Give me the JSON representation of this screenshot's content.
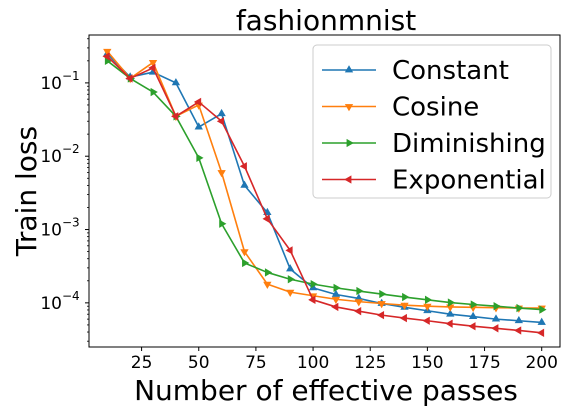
{
  "chart_data": {
    "type": "line",
    "title": "fashionmnist",
    "xlabel": "Number of effective passes",
    "ylabel": "Train loss",
    "yscale": "log",
    "xlim": [
      2,
      208
    ],
    "ylim": [
      2.5e-05,
      0.45
    ],
    "xticks": [
      25,
      50,
      75,
      100,
      125,
      150,
      175,
      200
    ],
    "yticks": [
      {
        "value": 0.1,
        "base": "10",
        "exp": "−1"
      },
      {
        "value": 0.01,
        "base": "10",
        "exp": "−2"
      },
      {
        "value": 0.001,
        "base": "10",
        "exp": "−3"
      },
      {
        "value": 0.0001,
        "base": "10",
        "exp": "−4"
      }
    ],
    "legend_position": "top-right",
    "grid": false,
    "series": [
      {
        "name": "Constant",
        "color": "#1f77b4",
        "marker": "triangle-up",
        "x": [
          10,
          20,
          30,
          40,
          50,
          60,
          70,
          80,
          90,
          100,
          110,
          120,
          130,
          140,
          150,
          160,
          170,
          180,
          190,
          200
        ],
        "y": [
          0.25,
          0.12,
          0.14,
          0.1,
          0.025,
          0.038,
          0.004,
          0.0017,
          0.00029,
          0.00016,
          0.00013,
          0.000115,
          9.8e-05,
          8.7e-05,
          7.8e-05,
          7e-05,
          6.5e-05,
          6e-05,
          5.7e-05,
          5.4e-05
        ]
      },
      {
        "name": "Cosine",
        "color": "#ff7f0e",
        "marker": "triangle-down",
        "x": [
          10,
          20,
          30,
          40,
          50,
          60,
          70,
          80,
          90,
          100,
          110,
          120,
          130,
          140,
          150,
          160,
          170,
          180,
          190,
          200
        ],
        "y": [
          0.27,
          0.115,
          0.19,
          0.035,
          0.05,
          0.006,
          0.0005,
          0.00018,
          0.00014,
          0.000125,
          0.000112,
          0.000104,
          9.8e-05,
          9.3e-05,
          9e-05,
          8.8e-05,
          8.7e-05,
          8.6e-05,
          8.5e-05,
          8.5e-05
        ]
      },
      {
        "name": "Diminishing",
        "color": "#2ca02c",
        "marker": "triangle-right",
        "x": [
          10,
          20,
          30,
          40,
          50,
          60,
          70,
          80,
          90,
          100,
          110,
          120,
          130,
          140,
          150,
          160,
          170,
          180,
          190,
          200
        ],
        "y": [
          0.2,
          0.115,
          0.075,
          0.035,
          0.0095,
          0.0012,
          0.00035,
          0.00026,
          0.00021,
          0.00018,
          0.00016,
          0.000145,
          0.000132,
          0.00012,
          0.00011,
          0.000101,
          9.5e-05,
          9e-05,
          8.5e-05,
          8.1e-05
        ]
      },
      {
        "name": "Exponential",
        "color": "#d62728",
        "marker": "triangle-left",
        "x": [
          10,
          20,
          30,
          40,
          50,
          60,
          70,
          80,
          90,
          100,
          110,
          120,
          130,
          140,
          150,
          160,
          170,
          180,
          190,
          200
        ],
        "y": [
          0.23,
          0.115,
          0.16,
          0.035,
          0.055,
          0.03,
          0.0073,
          0.0014,
          0.00052,
          0.00011,
          8.8e-05,
          7.7e-05,
          6.8e-05,
          6.2e-05,
          5.7e-05,
          5.2e-05,
          4.8e-05,
          4.5e-05,
          4.2e-05,
          3.9e-05
        ]
      }
    ]
  }
}
